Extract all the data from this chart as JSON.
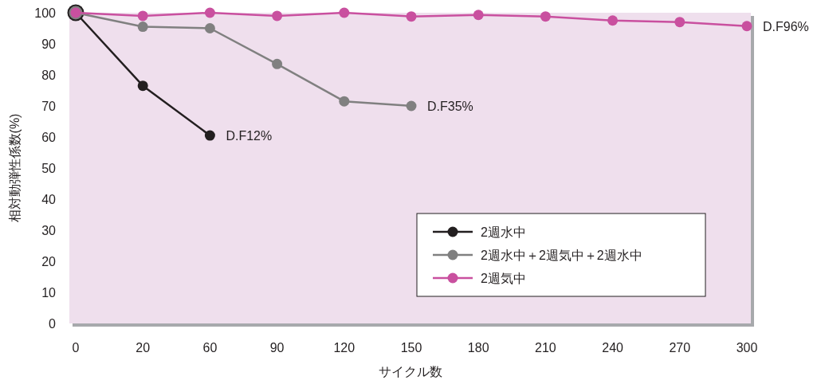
{
  "chart_data": {
    "type": "line",
    "categories": [
      "0",
      "20",
      "60",
      "90",
      "120",
      "150",
      "180",
      "210",
      "240",
      "270",
      "300"
    ],
    "xlabel": "サイクル数",
    "ylabel": "相対動弾性係数(%)",
    "ylim": [
      0,
      100
    ],
    "yticks": [
      0,
      10,
      20,
      30,
      40,
      50,
      60,
      70,
      80,
      90,
      100
    ],
    "grid": false,
    "legend": "bottom right",
    "marker": "circle",
    "line_style": "solid",
    "series": [
      {
        "name": "2週水中",
        "color": "#231f20",
        "values": [
          100,
          76.5,
          60.5,
          null,
          null,
          null,
          null,
          null,
          null,
          null,
          null
        ]
      },
      {
        "name": "2週水中＋2週気中＋2週水中",
        "color": "#808080",
        "values": [
          100,
          95.5,
          95,
          83.5,
          71.5,
          70,
          null,
          null,
          null,
          null,
          null
        ]
      },
      {
        "name": "2週気中",
        "color": "#c9509f",
        "values": [
          100,
          99,
          100,
          99,
          100,
          98.8,
          99.3,
          98.8,
          97.5,
          97,
          95.7
        ]
      }
    ],
    "annotations": [
      {
        "text": "D.F12%",
        "x": "60",
        "y": 60.5
      },
      {
        "text": "D.F35%",
        "x": "150",
        "y": 70
      },
      {
        "text": "D.F96%",
        "x": "300",
        "y": 95.7
      }
    ]
  }
}
